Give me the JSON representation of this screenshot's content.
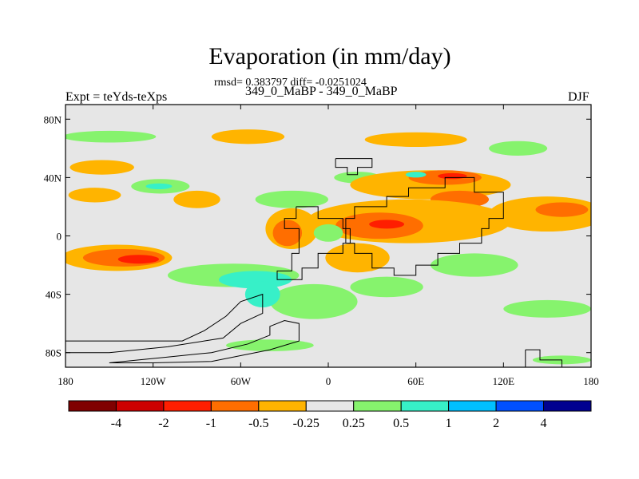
{
  "title": "Evaporation (in mm/day)",
  "stats": "rmsd= 0.383797 diff= -0.0251024",
  "case_label": "349_0_MaBP - 349_0_MaBP",
  "expt_label": "Expt = teYds-teXps",
  "season": "DJF",
  "map": {
    "lon_range": [
      -180,
      180
    ],
    "lat_range": [
      -90,
      90
    ],
    "background_color": "#e6e6e6",
    "coastline_color": "#000000",
    "y_ticks": [
      {
        "lat": 80,
        "label": "80N"
      },
      {
        "lat": 40,
        "label": "40N"
      },
      {
        "lat": 0,
        "label": "0"
      },
      {
        "lat": -40,
        "label": "40S"
      },
      {
        "lat": -80,
        "label": "80S"
      }
    ],
    "x_ticks": [
      {
        "lon": -180,
        "label": "180"
      },
      {
        "lon": -120,
        "label": "120W"
      },
      {
        "lon": -60,
        "label": "60W"
      },
      {
        "lon": 0,
        "label": "0"
      },
      {
        "lon": 60,
        "label": "60E"
      },
      {
        "lon": 120,
        "label": "120E"
      },
      {
        "lon": 180,
        "label": "180"
      }
    ],
    "fields": [
      {
        "level": "0.25 to 0.5",
        "color": "#86f36d",
        "lon": -150,
        "lat": 68,
        "rx": 32,
        "ry": 4
      },
      {
        "level": "-0.5 to -0.25",
        "color": "#ffb400",
        "lon": -55,
        "lat": 68,
        "rx": 25,
        "ry": 5
      },
      {
        "level": "-0.5 to -0.25",
        "color": "#ffb400",
        "lon": 60,
        "lat": 66,
        "rx": 35,
        "ry": 5
      },
      {
        "level": "0.25 to 0.5",
        "color": "#86f36d",
        "lon": 130,
        "lat": 60,
        "rx": 20,
        "ry": 5
      },
      {
        "level": "-0.5 to -0.25",
        "color": "#ffb400",
        "lon": -155,
        "lat": 47,
        "rx": 22,
        "ry": 5
      },
      {
        "level": "0.25 to 0.5",
        "color": "#86f36d",
        "lon": -115,
        "lat": 34,
        "rx": 20,
        "ry": 5
      },
      {
        "level": "0.5 to 1",
        "color": "#37f0c8",
        "lon": -116,
        "lat": 34,
        "rx": 9,
        "ry": 2
      },
      {
        "level": "-0.5 to -0.25",
        "color": "#ffb400",
        "lon": -160,
        "lat": 28,
        "rx": 18,
        "ry": 5
      },
      {
        "level": "-0.5 to -0.25",
        "color": "#ffb400",
        "lon": -90,
        "lat": 25,
        "rx": 16,
        "ry": 6
      },
      {
        "level": "0.25 to 0.5",
        "color": "#86f36d",
        "lon": -25,
        "lat": 25,
        "rx": 25,
        "ry": 6
      },
      {
        "level": "0.25 to 0.5",
        "color": "#86f36d",
        "lon": 20,
        "lat": 40,
        "rx": 16,
        "ry": 4
      },
      {
        "level": "-0.5 to -0.25",
        "color": "#ffb400",
        "lon": 70,
        "lat": 35,
        "rx": 55,
        "ry": 10
      },
      {
        "level": "-1 to -0.5",
        "color": "#ff6e00",
        "lon": 80,
        "lat": 40,
        "rx": 25,
        "ry": 5
      },
      {
        "level": "-2 to -1",
        "color": "#ff1e00",
        "lon": 85,
        "lat": 41,
        "rx": 10,
        "ry": 2
      },
      {
        "level": "0.5 to 1",
        "color": "#37f0c8",
        "lon": 60,
        "lat": 42,
        "rx": 7,
        "ry": 2
      },
      {
        "level": "-1 to -0.5",
        "color": "#ff6e00",
        "lon": 90,
        "lat": 25,
        "rx": 20,
        "ry": 6
      },
      {
        "level": "-0.5 to -0.25",
        "color": "#ffb400",
        "lon": 55,
        "lat": 10,
        "rx": 70,
        "ry": 15
      },
      {
        "level": "-1 to -0.5",
        "color": "#ff6e00",
        "lon": 35,
        "lat": 7,
        "rx": 30,
        "ry": 9
      },
      {
        "level": "-2 to -1",
        "color": "#ff1e00",
        "lon": 40,
        "lat": 8,
        "rx": 12,
        "ry": 3
      },
      {
        "level": "-0.5 to -0.25",
        "color": "#ffb400",
        "lon": 150,
        "lat": 15,
        "rx": 40,
        "ry": 12
      },
      {
        "level": "-1 to -0.5",
        "color": "#ff6e00",
        "lon": 160,
        "lat": 18,
        "rx": 18,
        "ry": 5
      },
      {
        "level": "-0.5 to -0.25",
        "color": "#ffb400",
        "lon": -25,
        "lat": 5,
        "rx": 18,
        "ry": 14
      },
      {
        "level": "-1 to -0.5",
        "color": "#ff6e00",
        "lon": -28,
        "lat": 2,
        "rx": 10,
        "ry": 9
      },
      {
        "level": "0.25 to 0.5",
        "color": "#86f36d",
        "lon": 0,
        "lat": 2,
        "rx": 10,
        "ry": 6
      },
      {
        "level": "-0.5 to -0.25",
        "color": "#ffb400",
        "lon": -145,
        "lat": -15,
        "rx": 38,
        "ry": 9
      },
      {
        "level": "-1 to -0.5",
        "color": "#ff6e00",
        "lon": -140,
        "lat": -15,
        "rx": 28,
        "ry": 6
      },
      {
        "level": "-2 to -1",
        "color": "#ff1e00",
        "lon": -130,
        "lat": -16,
        "rx": 14,
        "ry": 3
      },
      {
        "level": "0.25 to 0.5",
        "color": "#86f36d",
        "lon": -65,
        "lat": -27,
        "rx": 45,
        "ry": 8
      },
      {
        "level": "0.5 to 1",
        "color": "#37f0c8",
        "lon": -50,
        "lat": -30,
        "rx": 25,
        "ry": 6
      },
      {
        "level": "0.25 to 0.5",
        "color": "#86f36d",
        "lon": -10,
        "lat": -45,
        "rx": 30,
        "ry": 12
      },
      {
        "level": "0.5 to 1",
        "color": "#37f0c8",
        "lon": -45,
        "lat": -40,
        "rx": 12,
        "ry": 9
      },
      {
        "level": "0.25 to 0.5",
        "color": "#86f36d",
        "lon": 40,
        "lat": -35,
        "rx": 25,
        "ry": 7
      },
      {
        "level": "-0.5 to -0.25",
        "color": "#ffb400",
        "lon": 20,
        "lat": -15,
        "rx": 22,
        "ry": 10
      },
      {
        "level": "0.25 to 0.5",
        "color": "#86f36d",
        "lon": 100,
        "lat": -20,
        "rx": 30,
        "ry": 8
      },
      {
        "level": "0.25 to 0.5",
        "color": "#86f36d",
        "lon": 150,
        "lat": -50,
        "rx": 30,
        "ry": 6
      },
      {
        "level": "0.25 to 0.5",
        "color": "#86f36d",
        "lon": 160,
        "lat": -85,
        "rx": 20,
        "ry": 3
      },
      {
        "level": "0.25 to 0.5",
        "color": "#86f36d",
        "lon": -40,
        "lat": -75,
        "rx": 30,
        "ry": 4
      }
    ],
    "land_outlines": [
      {
        "name": "land-north-block",
        "points": [
          [
            5,
            53
          ],
          [
            5,
            47
          ],
          [
            13,
            47
          ],
          [
            13,
            42
          ],
          [
            20,
            42
          ],
          [
            20,
            47
          ],
          [
            30,
            47
          ],
          [
            30,
            53
          ],
          [
            5,
            53
          ]
        ]
      },
      {
        "name": "land-western-continent",
        "points": [
          [
            -22,
            20
          ],
          [
            -7,
            20
          ],
          [
            -7,
            12
          ],
          [
            10,
            12
          ],
          [
            10,
            5
          ],
          [
            15,
            5
          ],
          [
            15,
            -5
          ],
          [
            10,
            -5
          ],
          [
            10,
            -12
          ],
          [
            -7,
            -12
          ],
          [
            -7,
            -22
          ],
          [
            -18,
            -22
          ],
          [
            -18,
            -30
          ],
          [
            -35,
            -30
          ],
          [
            -35,
            -24
          ],
          [
            -25,
            -24
          ],
          [
            -25,
            -12
          ],
          [
            -20,
            -12
          ],
          [
            -20,
            5
          ],
          [
            -30,
            5
          ],
          [
            -30,
            12
          ],
          [
            -22,
            12
          ],
          [
            -22,
            20
          ]
        ]
      },
      {
        "name": "land-eastern-continent",
        "points": [
          [
            12,
            -5
          ],
          [
            12,
            12
          ],
          [
            18,
            12
          ],
          [
            18,
            20
          ],
          [
            40,
            20
          ],
          [
            40,
            27
          ],
          [
            55,
            27
          ],
          [
            55,
            33
          ],
          [
            80,
            33
          ],
          [
            80,
            40
          ],
          [
            100,
            40
          ],
          [
            100,
            30
          ],
          [
            120,
            30
          ],
          [
            120,
            12
          ],
          [
            110,
            12
          ],
          [
            110,
            5
          ],
          [
            105,
            5
          ],
          [
            105,
            -5
          ],
          [
            90,
            -5
          ],
          [
            90,
            -12
          ],
          [
            75,
            -12
          ],
          [
            75,
            -20
          ],
          [
            60,
            -20
          ],
          [
            60,
            -27
          ],
          [
            45,
            -27
          ],
          [
            45,
            -22
          ],
          [
            30,
            -22
          ],
          [
            30,
            -12
          ],
          [
            18,
            -12
          ],
          [
            18,
            -5
          ],
          [
            12,
            -5
          ]
        ]
      },
      {
        "name": "land-southern-continent",
        "points": [
          [
            -180,
            -72
          ],
          [
            -160,
            -72
          ],
          [
            -100,
            -72
          ],
          [
            -85,
            -65
          ],
          [
            -70,
            -55
          ],
          [
            -60,
            -45
          ],
          [
            -45,
            -40
          ],
          [
            -45,
            -53
          ],
          [
            -60,
            -60
          ],
          [
            -72,
            -70
          ],
          [
            -110,
            -76
          ],
          [
            -150,
            -80
          ],
          [
            -180,
            -80
          ]
        ]
      },
      {
        "name": "land-southern-strip",
        "points": [
          [
            -150,
            -87
          ],
          [
            -110,
            -83
          ],
          [
            -80,
            -80
          ],
          [
            -55,
            -74
          ],
          [
            -40,
            -68
          ],
          [
            -40,
            -62
          ],
          [
            -30,
            -58
          ],
          [
            -20,
            -60
          ],
          [
            -20,
            -72
          ],
          [
            -40,
            -78
          ],
          [
            -80,
            -86
          ],
          [
            -120,
            -87
          ],
          [
            -150,
            -87
          ]
        ]
      },
      {
        "name": "land-southeast-block",
        "points": [
          [
            135,
            -78
          ],
          [
            145,
            -78
          ],
          [
            145,
            -85
          ],
          [
            160,
            -85
          ],
          [
            160,
            -90
          ],
          [
            135,
            -90
          ],
          [
            135,
            -78
          ]
        ]
      }
    ]
  },
  "colorbar": {
    "colors": [
      "#800000",
      "#cc0000",
      "#ff1e00",
      "#ff6e00",
      "#ffb400",
      "#e6e6e6",
      "#86f36d",
      "#37f0c8",
      "#00c0ff",
      "#0050ff",
      "#000090"
    ],
    "labels": [
      "-4",
      "-2",
      "-1",
      "-0.5",
      "-0.25",
      "0.25",
      "0.5",
      "1",
      "2",
      "4"
    ]
  }
}
